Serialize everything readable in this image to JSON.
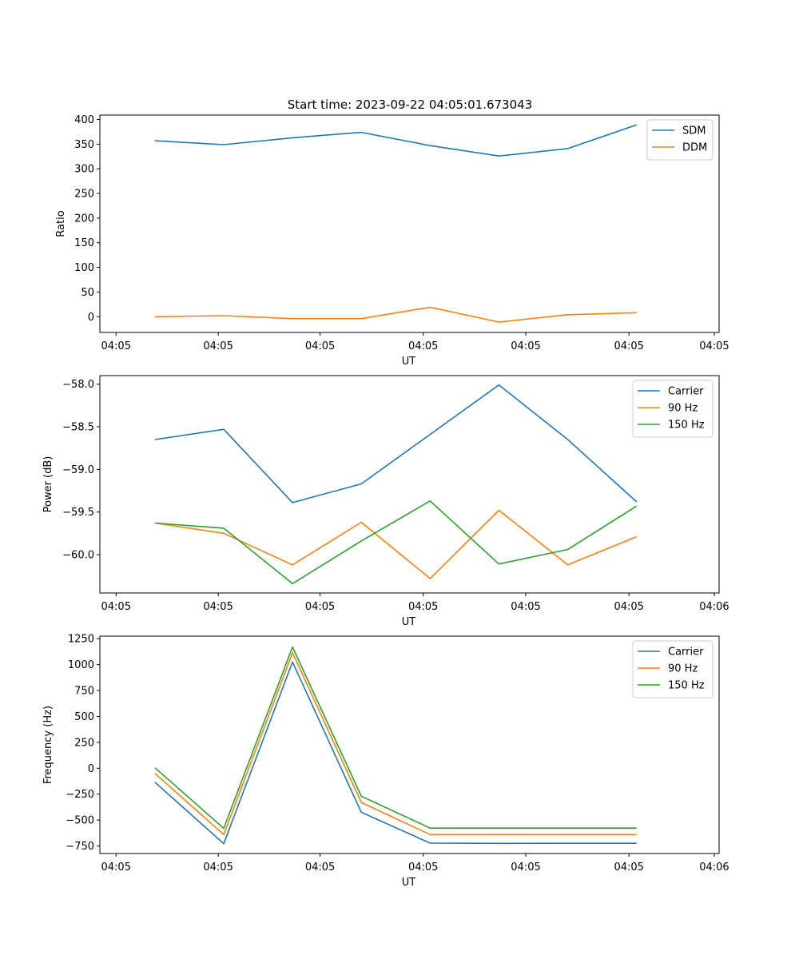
{
  "figure_title": "Start time: 2023-09-22 04:05:01.673043",
  "colors": {
    "c0": "#1f77b4",
    "c1": "#ff7f0e",
    "c2": "#2ca02c"
  },
  "chart_data": [
    {
      "type": "line",
      "title": "Start time: 2023-09-22 04:05:01.673043",
      "xlabel": "UT",
      "ylabel": "Ratio",
      "x": [
        1,
        2,
        3,
        4,
        5,
        6,
        7,
        8
      ],
      "xlim": [
        0.2,
        9.2
      ],
      "xticks": [
        0.435,
        1.92,
        3.4,
        4.9,
        6.39,
        7.89,
        9.13
      ],
      "xtick_labels": [
        "04:05",
        "04:05",
        "04:05",
        "04:05",
        "04:05",
        "04:05",
        "04:05"
      ],
      "ylim": [
        -32,
        409
      ],
      "yticks": [
        0,
        50,
        100,
        150,
        200,
        250,
        300,
        350,
        400
      ],
      "ytick_labels": [
        "0",
        "50",
        "100",
        "150",
        "200",
        "250",
        "300",
        "350",
        "400"
      ],
      "legend_position": "top-right",
      "series": [
        {
          "name": "SDM",
          "color": "#1f77b4",
          "values": [
            357,
            349,
            363,
            374,
            347,
            326,
            341,
            389
          ]
        },
        {
          "name": "DDM",
          "color": "#ff7f0e",
          "values": [
            0,
            2,
            -4,
            -4,
            19,
            -11,
            4,
            8
          ]
        }
      ]
    },
    {
      "type": "line",
      "title": "",
      "xlabel": "UT",
      "ylabel": "Power (dB)",
      "x": [
        1,
        2,
        3,
        4,
        5,
        6,
        7,
        8
      ],
      "xlim": [
        0.2,
        9.2
      ],
      "xticks": [
        0.435,
        1.92,
        3.4,
        4.9,
        6.39,
        7.89,
        9.13
      ],
      "xtick_labels": [
        "04:05",
        "04:05",
        "04:05",
        "04:05",
        "04:05",
        "04:05",
        "04:06"
      ],
      "ylim": [
        -60.45,
        -57.9
      ],
      "yticks": [
        -60.0,
        -59.5,
        -59.0,
        -58.5,
        -58.0
      ],
      "ytick_labels": [
        "−60.0",
        "−59.5",
        "−59.0",
        "−58.5",
        "−58.0"
      ],
      "legend_position": "top-right",
      "series": [
        {
          "name": "Carrier",
          "color": "#1f77b4",
          "values": [
            -58.65,
            -58.53,
            -59.39,
            -59.17,
            -58.59,
            -58.01,
            -58.65,
            -59.38
          ]
        },
        {
          "name": "90 Hz",
          "color": "#ff7f0e",
          "values": [
            -59.63,
            -59.75,
            -60.12,
            -59.62,
            -60.28,
            -59.48,
            -60.12,
            -59.79
          ]
        },
        {
          "name": "150 Hz",
          "color": "#2ca02c",
          "values": [
            -59.63,
            -59.69,
            -60.34,
            -59.84,
            -59.37,
            -60.11,
            -59.94,
            -59.43
          ]
        }
      ]
    },
    {
      "type": "line",
      "title": "",
      "xlabel": "UT",
      "ylabel": "Frequency (Hz)",
      "x": [
        1,
        2,
        3,
        4,
        5,
        6,
        7,
        8
      ],
      "xlim": [
        0.2,
        9.2
      ],
      "xticks": [
        0.435,
        1.92,
        3.4,
        4.9,
        6.39,
        7.89,
        9.13
      ],
      "xtick_labels": [
        "04:05",
        "04:05",
        "04:05",
        "04:05",
        "04:05",
        "04:05",
        "04:06"
      ],
      "ylim": [
        -823,
        1275
      ],
      "yticks": [
        -750,
        -500,
        -250,
        0,
        250,
        500,
        750,
        1000,
        1250
      ],
      "ytick_labels": [
        "−750",
        "−500",
        "−250",
        "0",
        "250",
        "500",
        "750",
        "1000",
        "1250"
      ],
      "legend_position": "top-right",
      "series": [
        {
          "name": "Carrier",
          "color": "#1f77b4",
          "values": [
            -135,
            -728,
            1025,
            -425,
            -723,
            -725,
            -724,
            -724
          ]
        },
        {
          "name": "90 Hz",
          "color": "#ff7f0e",
          "values": [
            -50,
            -640,
            1115,
            -330,
            -640,
            -640,
            -640,
            -640
          ]
        },
        {
          "name": "150 Hz",
          "color": "#2ca02c",
          "values": [
            5,
            -580,
            1170,
            -270,
            -578,
            -578,
            -578,
            -578
          ]
        }
      ]
    }
  ]
}
